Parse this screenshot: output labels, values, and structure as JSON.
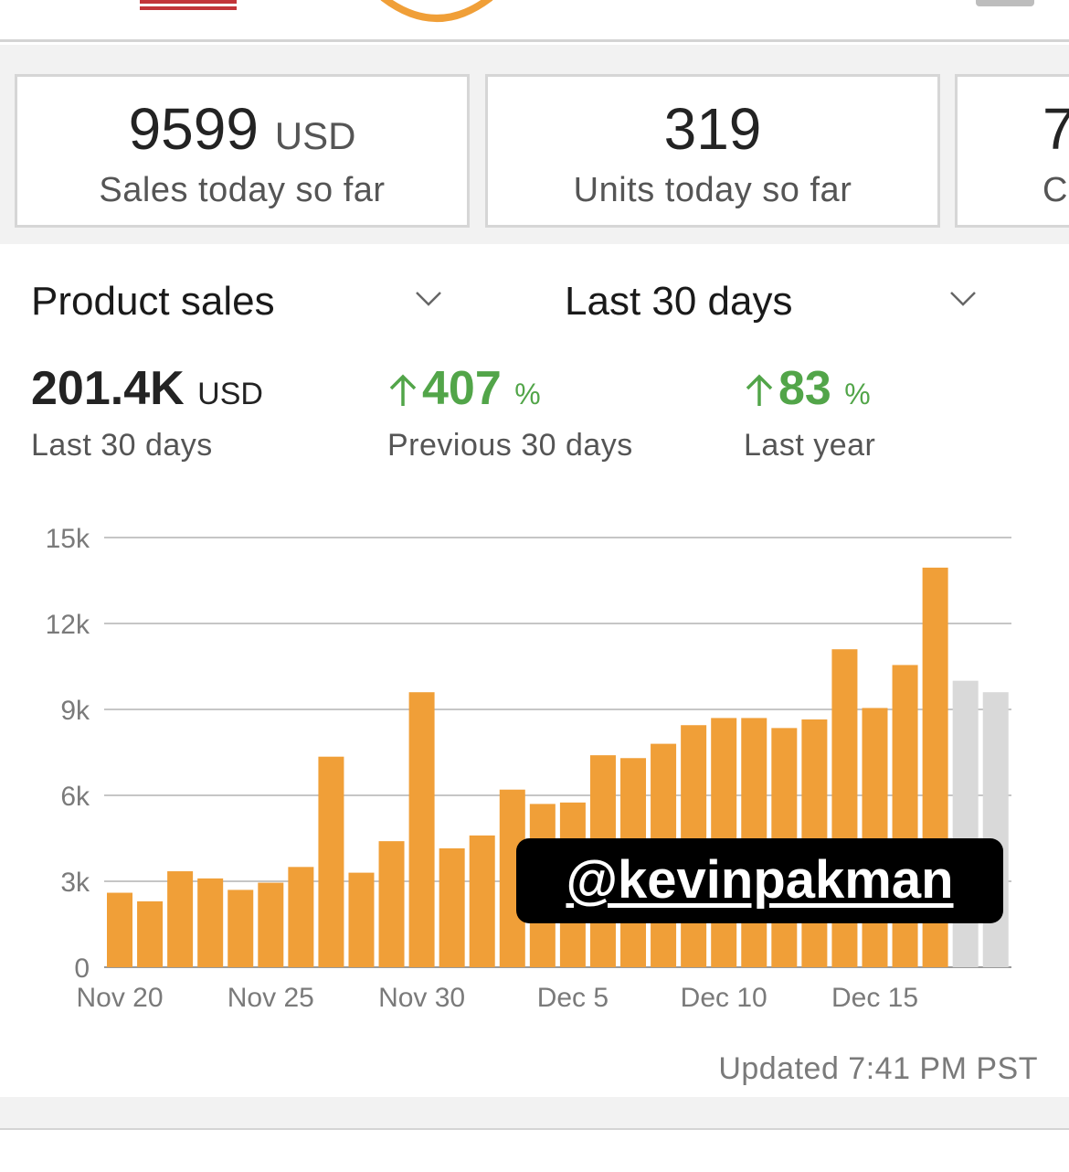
{
  "header": {
    "flag_icon": "us-flag-icon",
    "logo_icon": "amazon-smile-logo",
    "menu_icon": "menu-icon"
  },
  "cards": [
    {
      "value": "9599",
      "unit": "USD",
      "label": "Sales today so far"
    },
    {
      "value": "319",
      "unit": "",
      "label": "Units today so far"
    },
    {
      "value": "7",
      "unit": "",
      "label": "C"
    }
  ],
  "filters": {
    "metric": "Product sales",
    "period": "Last 30 days"
  },
  "stats": [
    {
      "value": "201.4K",
      "unit": "USD",
      "label": "Last 30 days"
    },
    {
      "value": "407",
      "unit": "%",
      "label": "Previous 30 days",
      "direction": "up"
    },
    {
      "value": "83",
      "unit": "%",
      "label": "Last year",
      "direction": "up"
    }
  ],
  "colors": {
    "bar": "#f09f38",
    "bar_partial": "#d9d9d9",
    "positive": "#52a549"
  },
  "chart_data": {
    "type": "bar",
    "x_tick_labels": [
      "Nov 20",
      "Nov 25",
      "Nov 30",
      "Dec 5",
      "Dec 10",
      "Dec 15"
    ],
    "y_tick_labels": [
      "0",
      "3k",
      "6k",
      "9k",
      "12k",
      "15k"
    ],
    "ylim": [
      0,
      15000
    ],
    "grid": true,
    "values": [
      2600,
      2300,
      3350,
      3100,
      2700,
      2950,
      3500,
      7350,
      3300,
      4400,
      9600,
      4150,
      4600,
      6200,
      5700,
      5750,
      7400,
      7300,
      7800,
      8450,
      8700,
      8700,
      8350,
      8650,
      11100,
      9050,
      10550,
      13950,
      10000,
      9600
    ],
    "partial_values_from_index": 28
  },
  "updated": "Updated 7:41 PM PST",
  "watermark": "@kevinpakman"
}
